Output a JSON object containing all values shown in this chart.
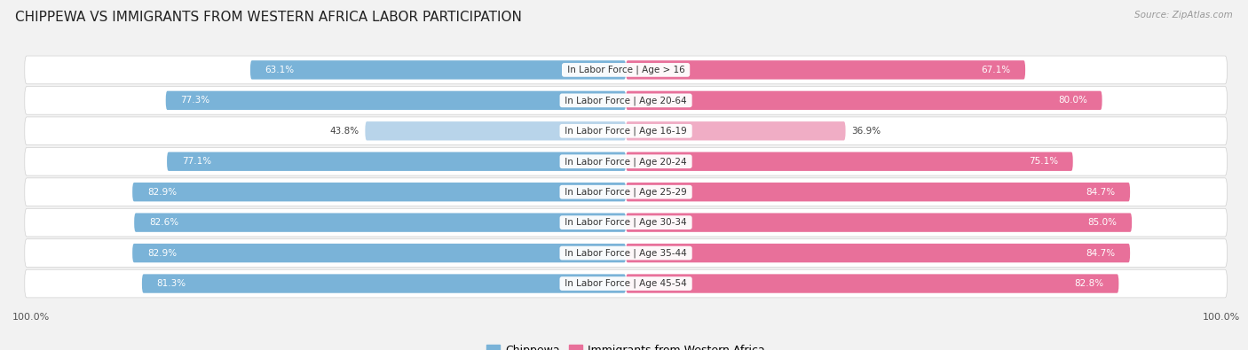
{
  "title": "CHIPPEWA VS IMMIGRANTS FROM WESTERN AFRICA LABOR PARTICIPATION",
  "source": "Source: ZipAtlas.com",
  "categories": [
    "In Labor Force | Age > 16",
    "In Labor Force | Age 20-64",
    "In Labor Force | Age 16-19",
    "In Labor Force | Age 20-24",
    "In Labor Force | Age 25-29",
    "In Labor Force | Age 30-34",
    "In Labor Force | Age 35-44",
    "In Labor Force | Age 45-54"
  ],
  "chippewa_values": [
    63.1,
    77.3,
    43.8,
    77.1,
    82.9,
    82.6,
    82.9,
    81.3
  ],
  "immigrant_values": [
    67.1,
    80.0,
    36.9,
    75.1,
    84.7,
    85.0,
    84.7,
    82.8
  ],
  "chippewa_color": "#7ab3d8",
  "chippewa_color_light": "#b8d4ea",
  "immigrant_color": "#e8709a",
  "immigrant_color_light": "#f0adc5",
  "bar_height": 0.62,
  "background_color": "#f2f2f2",
  "row_bg_even": "#e8e8e8",
  "row_bg_odd": "#f2f2f2",
  "max_value": 100.0,
  "label_fontsize": 7.5,
  "value_fontsize": 7.5,
  "title_fontsize": 11,
  "legend_chippewa": "Chippewa",
  "legend_immigrant": "Immigrants from Western Africa",
  "threshold": 50
}
